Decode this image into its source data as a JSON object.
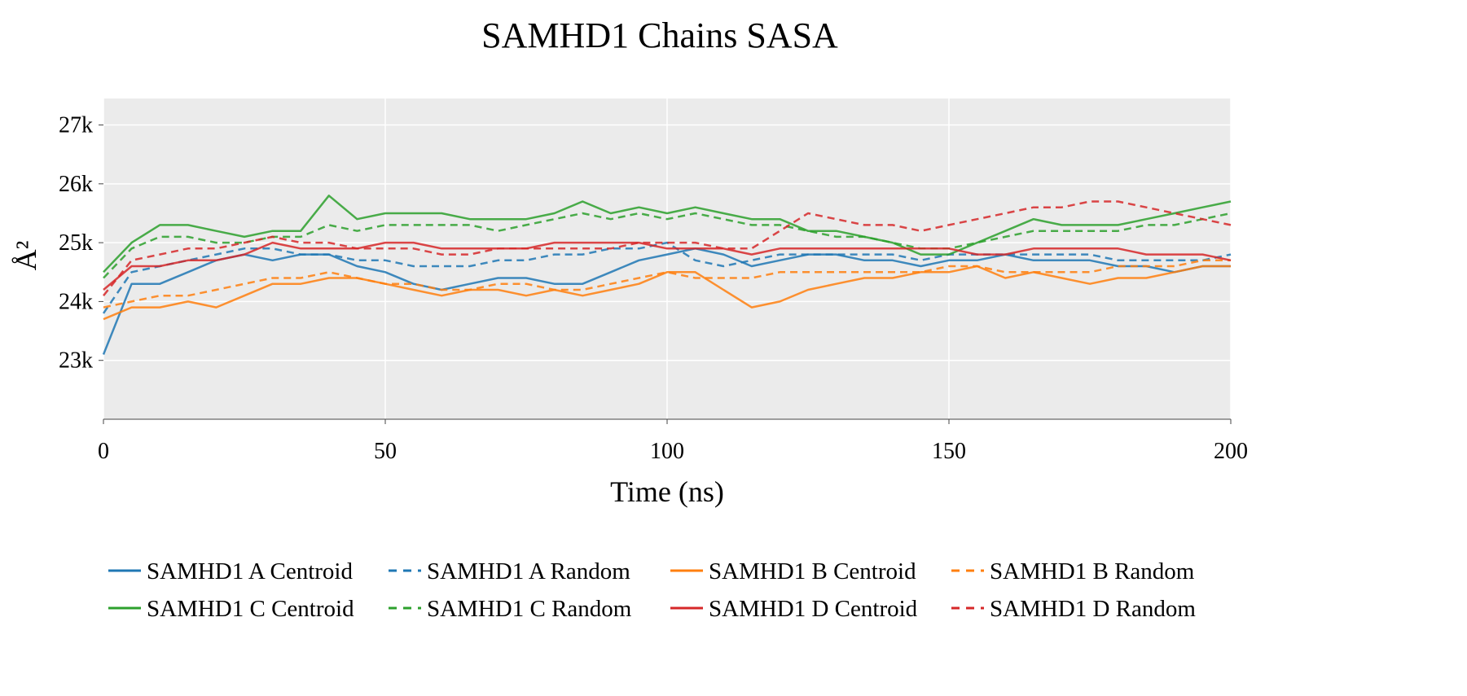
{
  "chart_data": {
    "type": "line",
    "title": "SAMHD1 Chains SASA",
    "xlabel": "Time (ns)",
    "ylabel": "Å²",
    "xlim": [
      0,
      200
    ],
    "ylim": [
      22000,
      27450
    ],
    "x_ticks": [
      0,
      50,
      100,
      150,
      200
    ],
    "x_tick_labels": [
      "0",
      "50",
      "100",
      "150",
      "200"
    ],
    "y_ticks": [
      23000,
      24000,
      25000,
      26000,
      27000
    ],
    "y_tick_labels": [
      "23k",
      "24k",
      "25k",
      "26k",
      "27k"
    ],
    "grid": true,
    "background": "#ebebeb",
    "legend_position": "bottom",
    "series": [
      {
        "name": "SAMHD1 A Centroid",
        "color": "#1f77b4",
        "dash": "solid",
        "x": [
          0,
          5,
          10,
          15,
          20,
          25,
          30,
          35,
          40,
          45,
          50,
          55,
          60,
          65,
          70,
          75,
          80,
          85,
          90,
          95,
          100,
          105,
          110,
          115,
          120,
          125,
          130,
          135,
          140,
          145,
          150,
          155,
          160,
          165,
          170,
          175,
          180,
          185,
          190,
          195,
          200
        ],
        "y": [
          23100,
          24300,
          24300,
          24500,
          24700,
          24800,
          24700,
          24800,
          24800,
          24600,
          24500,
          24300,
          24200,
          24300,
          24400,
          24400,
          24300,
          24300,
          24500,
          24700,
          24800,
          24900,
          24800,
          24600,
          24700,
          24800,
          24800,
          24700,
          24700,
          24600,
          24700,
          24700,
          24800,
          24700,
          24700,
          24700,
          24600,
          24600,
          24500,
          24600,
          24600
        ]
      },
      {
        "name": "SAMHD1 A Random",
        "color": "#1f77b4",
        "dash": "dash",
        "x": [
          0,
          5,
          10,
          15,
          20,
          25,
          30,
          35,
          40,
          45,
          50,
          55,
          60,
          65,
          70,
          75,
          80,
          85,
          90,
          95,
          100,
          105,
          110,
          115,
          120,
          125,
          130,
          135,
          140,
          145,
          150,
          155,
          160,
          165,
          170,
          175,
          180,
          185,
          190,
          195,
          200
        ],
        "y": [
          23800,
          24500,
          24600,
          24700,
          24800,
          24900,
          24900,
          24800,
          24800,
          24700,
          24700,
          24600,
          24600,
          24600,
          24700,
          24700,
          24800,
          24800,
          24900,
          24900,
          25000,
          24700,
          24600,
          24700,
          24800,
          24800,
          24800,
          24800,
          24800,
          24700,
          24800,
          24800,
          24800,
          24800,
          24800,
          24800,
          24700,
          24700,
          24700,
          24700,
          24800
        ]
      },
      {
        "name": "SAMHD1 B Centroid",
        "color": "#ff7f0e",
        "dash": "solid",
        "x": [
          0,
          5,
          10,
          15,
          20,
          25,
          30,
          35,
          40,
          45,
          50,
          55,
          60,
          65,
          70,
          75,
          80,
          85,
          90,
          95,
          100,
          105,
          110,
          115,
          120,
          125,
          130,
          135,
          140,
          145,
          150,
          155,
          160,
          165,
          170,
          175,
          180,
          185,
          190,
          195,
          200
        ],
        "y": [
          23700,
          23900,
          23900,
          24000,
          23900,
          24100,
          24300,
          24300,
          24400,
          24400,
          24300,
          24200,
          24100,
          24200,
          24200,
          24100,
          24200,
          24100,
          24200,
          24300,
          24500,
          24500,
          24200,
          23900,
          24000,
          24200,
          24300,
          24400,
          24400,
          24500,
          24500,
          24600,
          24400,
          24500,
          24400,
          24300,
          24400,
          24400,
          24500,
          24600,
          24600
        ]
      },
      {
        "name": "SAMHD1 B Random",
        "color": "#ff7f0e",
        "dash": "dash",
        "x": [
          0,
          5,
          10,
          15,
          20,
          25,
          30,
          35,
          40,
          45,
          50,
          55,
          60,
          65,
          70,
          75,
          80,
          85,
          90,
          95,
          100,
          105,
          110,
          115,
          120,
          125,
          130,
          135,
          140,
          145,
          150,
          155,
          160,
          165,
          170,
          175,
          180,
          185,
          190,
          195,
          200
        ],
        "y": [
          23900,
          24000,
          24100,
          24100,
          24200,
          24300,
          24400,
          24400,
          24500,
          24400,
          24300,
          24300,
          24200,
          24200,
          24300,
          24300,
          24200,
          24200,
          24300,
          24400,
          24500,
          24400,
          24400,
          24400,
          24500,
          24500,
          24500,
          24500,
          24500,
          24500,
          24600,
          24600,
          24500,
          24500,
          24500,
          24500,
          24600,
          24600,
          24600,
          24700,
          24700
        ]
      },
      {
        "name": "SAMHD1 C Centroid",
        "color": "#2ca02c",
        "dash": "solid",
        "x": [
          0,
          5,
          10,
          15,
          20,
          25,
          30,
          35,
          40,
          45,
          50,
          55,
          60,
          65,
          70,
          75,
          80,
          85,
          90,
          95,
          100,
          105,
          110,
          115,
          120,
          125,
          130,
          135,
          140,
          145,
          150,
          155,
          160,
          165,
          170,
          175,
          180,
          185,
          190,
          195,
          200
        ],
        "y": [
          24500,
          25000,
          25300,
          25300,
          25200,
          25100,
          25200,
          25200,
          25800,
          25400,
          25500,
          25500,
          25500,
          25400,
          25400,
          25400,
          25500,
          25700,
          25500,
          25600,
          25500,
          25600,
          25500,
          25400,
          25400,
          25200,
          25200,
          25100,
          25000,
          24800,
          24800,
          25000,
          25200,
          25400,
          25300,
          25300,
          25300,
          25400,
          25500,
          25600,
          25700
        ]
      },
      {
        "name": "SAMHD1 C Random",
        "color": "#2ca02c",
        "dash": "dash",
        "x": [
          0,
          5,
          10,
          15,
          20,
          25,
          30,
          35,
          40,
          45,
          50,
          55,
          60,
          65,
          70,
          75,
          80,
          85,
          90,
          95,
          100,
          105,
          110,
          115,
          120,
          125,
          130,
          135,
          140,
          145,
          150,
          155,
          160,
          165,
          170,
          175,
          180,
          185,
          190,
          195,
          200
        ],
        "y": [
          24400,
          24900,
          25100,
          25100,
          25000,
          25000,
          25100,
          25100,
          25300,
          25200,
          25300,
          25300,
          25300,
          25300,
          25200,
          25300,
          25400,
          25500,
          25400,
          25500,
          25400,
          25500,
          25400,
          25300,
          25300,
          25200,
          25100,
          25100,
          25000,
          24900,
          24900,
          25000,
          25100,
          25200,
          25200,
          25200,
          25200,
          25300,
          25300,
          25400,
          25500
        ]
      },
      {
        "name": "SAMHD1 D Centroid",
        "color": "#d62728",
        "dash": "solid",
        "x": [
          0,
          5,
          10,
          15,
          20,
          25,
          30,
          35,
          40,
          45,
          50,
          55,
          60,
          65,
          70,
          75,
          80,
          85,
          90,
          95,
          100,
          105,
          110,
          115,
          120,
          125,
          130,
          135,
          140,
          145,
          150,
          155,
          160,
          165,
          170,
          175,
          180,
          185,
          190,
          195,
          200
        ],
        "y": [
          24200,
          24600,
          24600,
          24700,
          24700,
          24800,
          25000,
          24900,
          24900,
          24900,
          25000,
          25000,
          24900,
          24900,
          24900,
          24900,
          25000,
          25000,
          25000,
          25000,
          24900,
          24900,
          24900,
          24800,
          24900,
          24900,
          24900,
          24900,
          24900,
          24900,
          24900,
          24800,
          24800,
          24900,
          24900,
          24900,
          24900,
          24800,
          24800,
          24800,
          24700
        ]
      },
      {
        "name": "SAMHD1 D Random",
        "color": "#d62728",
        "dash": "dash",
        "x": [
          0,
          5,
          10,
          15,
          20,
          25,
          30,
          35,
          40,
          45,
          50,
          55,
          60,
          65,
          70,
          75,
          80,
          85,
          90,
          95,
          100,
          105,
          110,
          115,
          120,
          125,
          130,
          135,
          140,
          145,
          150,
          155,
          160,
          165,
          170,
          175,
          180,
          185,
          190,
          195,
          200
        ],
        "y": [
          24100,
          24700,
          24800,
          24900,
          24900,
          25000,
          25100,
          25000,
          25000,
          24900,
          24900,
          24900,
          24800,
          24800,
          24900,
          24900,
          24900,
          24900,
          24900,
          25000,
          25000,
          25000,
          24900,
          24900,
          25200,
          25500,
          25400,
          25300,
          25300,
          25200,
          25300,
          25400,
          25500,
          25600,
          25600,
          25700,
          25700,
          25600,
          25500,
          25400,
          25300
        ]
      }
    ]
  }
}
